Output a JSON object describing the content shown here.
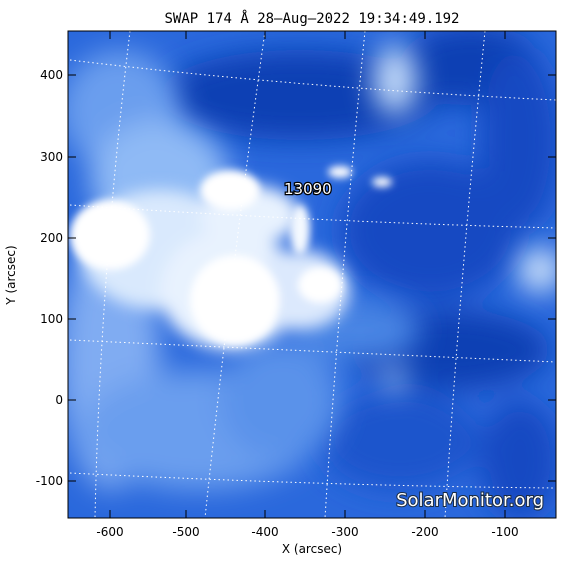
{
  "title": "SWAP 174 Å 28–Aug–2022 19:34:49.192",
  "xlabel": "X (arcsec)",
  "ylabel": "Y (arcsec)",
  "x_ticks": [
    "-600",
    "-500",
    "-400",
    "-300",
    "-200",
    "-100"
  ],
  "y_ticks": [
    "400",
    "300",
    "200",
    "100",
    "0",
    "-100"
  ],
  "region_label": "13090",
  "watermark": "SolarMonitor.org",
  "colors": {
    "deep_blue": "#0b3fb8",
    "mid_blue": "#2f72e6",
    "light_blue": "#8fbaf5",
    "bright": "#ffffff"
  }
}
